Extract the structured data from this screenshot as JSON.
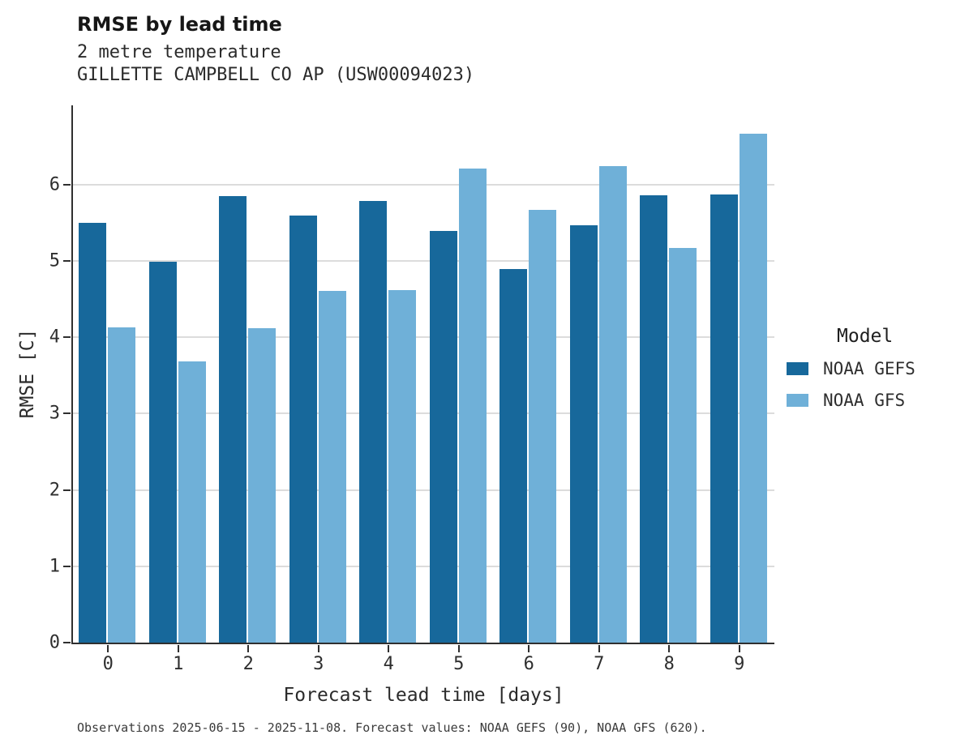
{
  "chart_data": {
    "type": "bar",
    "title": "RMSE by lead time",
    "subtitle1": "2 metre temperature",
    "subtitle2": "GILLETTE CAMPBELL CO AP (USW00094023)",
    "xlabel": "Forecast lead time [days]",
    "ylabel": "RMSE [C]",
    "categories": [
      "0",
      "1",
      "2",
      "3",
      "4",
      "5",
      "6",
      "7",
      "8",
      "9"
    ],
    "series": [
      {
        "name": "NOAA GEFS",
        "color": "#17689b",
        "values": [
          5.5,
          4.99,
          5.85,
          5.6,
          5.79,
          5.39,
          4.9,
          5.47,
          5.86,
          5.87
        ]
      },
      {
        "name": "NOAA GFS",
        "color": "#6fb0d8",
        "values": [
          4.13,
          3.68,
          4.12,
          4.61,
          4.62,
          6.21,
          5.67,
          6.24,
          5.17,
          6.67
        ]
      }
    ],
    "ylim": [
      0,
      7.04
    ],
    "yticks": [
      0,
      1,
      2,
      3,
      4,
      5,
      6
    ],
    "grid": true,
    "legend_position": "right",
    "legend_title": "Model",
    "background": "#ffffff",
    "gridline_color": "#dcdcdc"
  },
  "caption": "Observations 2025-06-15 - 2025-11-08. Forecast values: NOAA GEFS (90), NOAA GFS (620)."
}
